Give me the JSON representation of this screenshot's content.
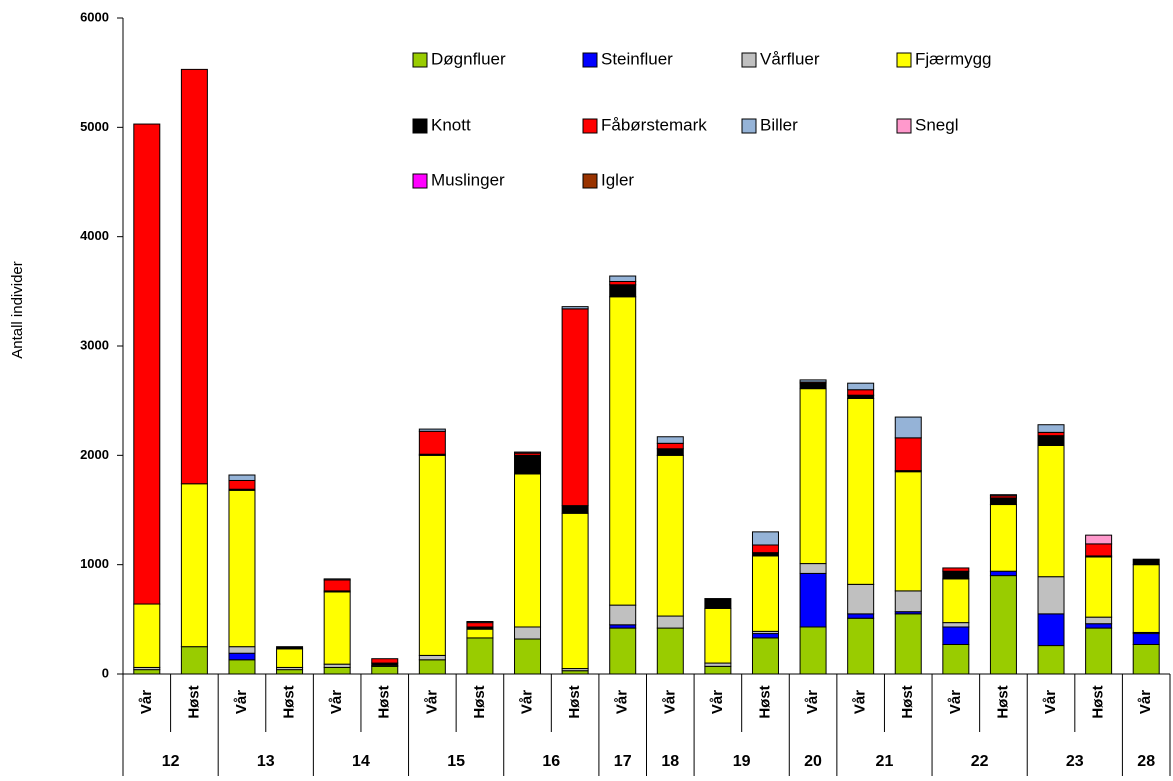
{
  "chart_data": {
    "type": "stacked_bar",
    "y_label": "Antall individer",
    "categories": [
      [
        "12",
        "Vår"
      ],
      [
        "12",
        "Høst"
      ],
      [
        "13",
        "Vår"
      ],
      [
        "13",
        "Høst"
      ],
      [
        "14",
        "Vår"
      ],
      [
        "14",
        "Høst"
      ],
      [
        "15",
        "Vår"
      ],
      [
        "15",
        "Høst"
      ],
      [
        "16",
        "Vår"
      ],
      [
        "16",
        "Høst"
      ],
      [
        "17",
        "Vår"
      ],
      [
        "18",
        "Vår"
      ],
      [
        "19",
        "Vår"
      ],
      [
        "19",
        "Høst"
      ],
      [
        "20",
        "Vår"
      ],
      [
        "21",
        "Vår"
      ],
      [
        "21",
        "Høst"
      ],
      [
        "22",
        "Vår"
      ],
      [
        "22",
        "Høst"
      ],
      [
        "23",
        "Vår"
      ],
      [
        "23",
        "Høst"
      ],
      [
        "28",
        "Vår"
      ]
    ],
    "series": [
      {
        "name": "Døgnfluer",
        "color": "#99cc00",
        "values": [
          40,
          250,
          130,
          40,
          60,
          70,
          130,
          330,
          320,
          30,
          420,
          420,
          70,
          330,
          430,
          510,
          550,
          270,
          900,
          260,
          420,
          270
        ]
      },
      {
        "name": "Steinfluer",
        "color": "#0000ff",
        "values": [
          0,
          0,
          60,
          0,
          0,
          0,
          0,
          0,
          0,
          0,
          30,
          0,
          0,
          40,
          490,
          40,
          20,
          160,
          40,
          290,
          40,
          100
        ]
      },
      {
        "name": "Vårfluer",
        "color": "#c0c0c0",
        "values": [
          20,
          0,
          60,
          20,
          30,
          0,
          40,
          0,
          110,
          20,
          180,
          110,
          30,
          20,
          90,
          270,
          190,
          40,
          0,
          340,
          60,
          10
        ]
      },
      {
        "name": "Fjærmygg",
        "color": "#ffff00",
        "values": [
          580,
          1490,
          1430,
          170,
          660,
          10,
          1830,
          80,
          1400,
          1420,
          2820,
          1470,
          500,
          690,
          1600,
          1700,
          1090,
          400,
          610,
          1200,
          550,
          620
        ]
      },
      {
        "name": "Knott",
        "color": "#000000",
        "values": [
          0,
          0,
          10,
          20,
          10,
          20,
          10,
          20,
          170,
          70,
          110,
          60,
          90,
          30,
          50,
          30,
          10,
          70,
          60,
          90,
          10,
          50
        ]
      },
      {
        "name": "Fåbørstemark",
        "color": "#ff0000",
        "values": [
          4390,
          3790,
          80,
          0,
          100,
          40,
          210,
          40,
          20,
          1800,
          30,
          50,
          0,
          70,
          10,
          50,
          300,
          30,
          20,
          30,
          110,
          0
        ]
      },
      {
        "name": "Biller",
        "color": "#95b3d7",
        "values": [
          0,
          0,
          50,
          0,
          10,
          0,
          20,
          10,
          10,
          20,
          50,
          60,
          0,
          120,
          20,
          60,
          190,
          0,
          10,
          70,
          0,
          0
        ]
      },
      {
        "name": "Snegl",
        "color": "#ff99cc",
        "values": [
          0,
          0,
          0,
          0,
          0,
          0,
          0,
          0,
          0,
          0,
          0,
          0,
          0,
          0,
          0,
          0,
          0,
          0,
          0,
          0,
          80,
          0
        ]
      },
      {
        "name": "Muslinger",
        "color": "#ff00ff",
        "values": [
          0,
          0,
          0,
          0,
          0,
          0,
          0,
          0,
          0,
          0,
          0,
          0,
          0,
          0,
          0,
          0,
          0,
          0,
          0,
          0,
          0,
          0
        ]
      },
      {
        "name": "Igler",
        "color": "#993300",
        "values": [
          0,
          0,
          0,
          0,
          0,
          0,
          0,
          0,
          0,
          0,
          0,
          0,
          0,
          0,
          0,
          0,
          0,
          0,
          0,
          0,
          0,
          0
        ]
      }
    ],
    "ylim": [
      0,
      6000
    ],
    "yticks": [
      0,
      1000,
      2000,
      3000,
      4000,
      5000,
      6000
    ]
  }
}
